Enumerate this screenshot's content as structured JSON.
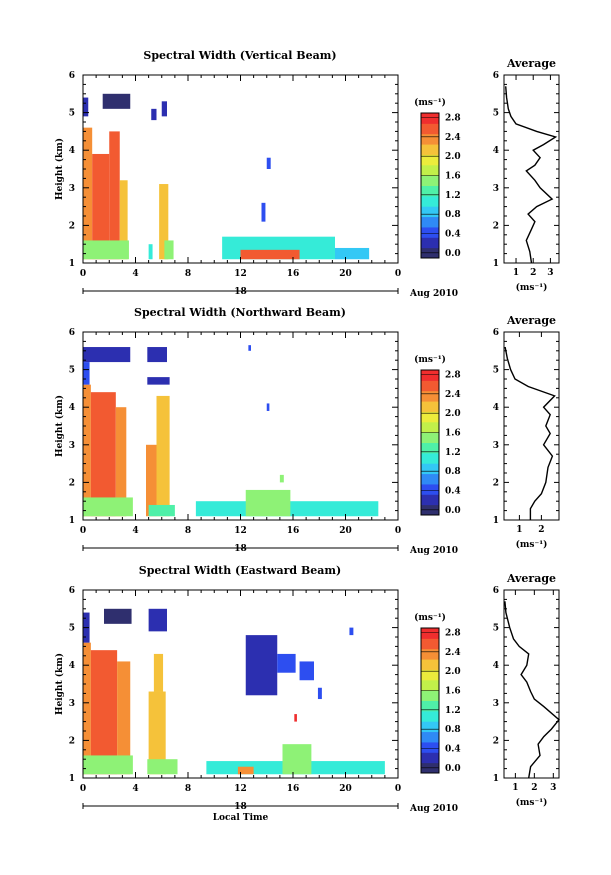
{
  "chart_data": [
    {
      "type": "heatmap",
      "title": "Spectral Width (Vertical Beam)",
      "ylabel": "Height (km)",
      "xlabel": "",
      "x_ticks": [
        "0",
        "4",
        "8",
        "12",
        "16",
        "20",
        "0"
      ],
      "y_ticks": [
        "1",
        "2",
        "3",
        "4",
        "5",
        "6"
      ],
      "date_label": "18",
      "month_label": "Aug 2010",
      "xlim": [
        0,
        24
      ],
      "ylim": [
        1,
        6
      ],
      "colorbar": {
        "unit": "(ms⁻¹)",
        "tick_labels": [
          "0.0",
          "0.4",
          "0.8",
          "1.2",
          "1.6",
          "2.0",
          "2.4",
          "2.8"
        ],
        "range": [
          0,
          3.0
        ]
      },
      "cells": [
        {
          "t0": 0.0,
          "t1": 0.7,
          "z0": 1.1,
          "z1": 4.6,
          "v": 2.4
        },
        {
          "t0": 0.7,
          "t1": 2.0,
          "z0": 1.1,
          "z1": 3.9,
          "v": 2.6
        },
        {
          "t0": 2.0,
          "t1": 2.8,
          "z0": 1.1,
          "z1": 4.5,
          "v": 2.7
        },
        {
          "t0": 2.8,
          "t1": 3.4,
          "z0": 1.1,
          "z1": 3.2,
          "v": 2.3
        },
        {
          "t0": 0.0,
          "t1": 3.5,
          "z0": 1.1,
          "z1": 1.6,
          "v": 1.7
        },
        {
          "t0": 1.5,
          "t1": 3.6,
          "z0": 5.1,
          "z1": 5.5,
          "v": 0.2
        },
        {
          "t0": 0.0,
          "t1": 0.4,
          "z0": 4.9,
          "z1": 5.4,
          "v": 0.4
        },
        {
          "t0": 5.8,
          "t1": 6.5,
          "z0": 1.1,
          "z1": 3.1,
          "v": 2.2
        },
        {
          "t0": 6.2,
          "t1": 6.9,
          "z0": 1.1,
          "z1": 1.6,
          "v": 1.5
        },
        {
          "t0": 5.0,
          "t1": 5.3,
          "z0": 1.1,
          "z1": 1.5,
          "v": 1.2
        },
        {
          "t0": 5.2,
          "t1": 5.6,
          "z0": 4.8,
          "z1": 5.1,
          "v": 0.4
        },
        {
          "t0": 6.0,
          "t1": 6.4,
          "z0": 4.9,
          "z1": 5.3,
          "v": 0.3
        },
        {
          "t0": 10.6,
          "t1": 19.2,
          "z0": 1.1,
          "z1": 1.7,
          "v": 1.2
        },
        {
          "t0": 12.0,
          "t1": 16.5,
          "z0": 1.1,
          "z1": 1.35,
          "v": 2.7
        },
        {
          "t0": 19.2,
          "t1": 21.8,
          "z0": 1.1,
          "z1": 1.4,
          "v": 1.0
        },
        {
          "t0": 14.0,
          "t1": 14.3,
          "z0": 3.5,
          "z1": 3.8,
          "v": 0.5
        },
        {
          "t0": 13.6,
          "t1": 13.9,
          "z0": 2.1,
          "z1": 2.6,
          "v": 0.5
        }
      ],
      "average_profile": {
        "title": "Average",
        "xlabel": "(ms⁻¹)",
        "x_ticks": [
          "1",
          "2",
          "3"
        ],
        "y_ticks": [
          "1",
          "2",
          "3",
          "4",
          "5",
          "6"
        ],
        "xlim": [
          0.3,
          3.5
        ],
        "ylim": [
          1,
          6
        ],
        "points": [
          [
            1.9,
            1.0
          ],
          [
            1.8,
            1.3
          ],
          [
            1.6,
            1.6
          ],
          [
            1.9,
            1.9
          ],
          [
            2.1,
            2.1
          ],
          [
            1.7,
            2.3
          ],
          [
            2.2,
            2.5
          ],
          [
            3.1,
            2.7
          ],
          [
            2.4,
            3.0
          ],
          [
            2.1,
            3.2
          ],
          [
            1.6,
            3.45
          ],
          [
            2.1,
            3.6
          ],
          [
            2.4,
            3.8
          ],
          [
            2.0,
            4.0
          ],
          [
            2.6,
            4.15
          ],
          [
            3.3,
            4.35
          ],
          [
            2.2,
            4.5
          ],
          [
            1.0,
            4.7
          ],
          [
            0.7,
            4.9
          ],
          [
            0.55,
            5.1
          ],
          [
            0.45,
            5.4
          ],
          [
            0.4,
            5.7
          ]
        ]
      }
    },
    {
      "type": "heatmap",
      "title": "Spectral Width (Northward Beam)",
      "ylabel": "Height (km)",
      "xlabel": "",
      "x_ticks": [
        "0",
        "4",
        "8",
        "12",
        "16",
        "20",
        "0"
      ],
      "y_ticks": [
        "1",
        "2",
        "3",
        "4",
        "5",
        "6"
      ],
      "date_label": "18",
      "month_label": "Aug 2010",
      "xlim": [
        0,
        24
      ],
      "ylim": [
        1,
        6
      ],
      "colorbar": {
        "unit": "(ms⁻¹)",
        "tick_labels": [
          "0.0",
          "0.4",
          "0.8",
          "1.2",
          "1.6",
          "2.0",
          "2.4",
          "2.8"
        ],
        "range": [
          0,
          3.0
        ]
      },
      "cells": [
        {
          "t0": 0.0,
          "t1": 0.6,
          "z0": 1.1,
          "z1": 4.6,
          "v": 2.4
        },
        {
          "t0": 0.6,
          "t1": 2.5,
          "z0": 1.1,
          "z1": 4.4,
          "v": 2.7
        },
        {
          "t0": 2.5,
          "t1": 3.3,
          "z0": 1.1,
          "z1": 4.0,
          "v": 2.5
        },
        {
          "t0": 0.0,
          "t1": 3.8,
          "z0": 1.1,
          "z1": 1.6,
          "v": 1.7
        },
        {
          "t0": 0.0,
          "t1": 3.6,
          "z0": 5.2,
          "z1": 5.6,
          "v": 0.3
        },
        {
          "t0": 0.0,
          "t1": 0.5,
          "z0": 4.6,
          "z1": 5.2,
          "v": 0.5
        },
        {
          "t0": 4.8,
          "t1": 5.6,
          "z0": 1.1,
          "z1": 3.0,
          "v": 2.4
        },
        {
          "t0": 5.6,
          "t1": 6.6,
          "z0": 1.1,
          "z1": 4.3,
          "v": 2.3
        },
        {
          "t0": 4.9,
          "t1": 6.4,
          "z0": 5.2,
          "z1": 5.6,
          "v": 0.3
        },
        {
          "t0": 4.9,
          "t1": 6.6,
          "z0": 4.6,
          "z1": 4.8,
          "v": 0.4
        },
        {
          "t0": 5.0,
          "t1": 7.0,
          "z0": 1.1,
          "z1": 1.4,
          "v": 1.4
        },
        {
          "t0": 8.6,
          "t1": 22.5,
          "z0": 1.1,
          "z1": 1.5,
          "v": 1.1
        },
        {
          "t0": 12.4,
          "t1": 15.8,
          "z0": 1.1,
          "z1": 1.8,
          "v": 1.6
        },
        {
          "t0": 15.0,
          "t1": 15.3,
          "z0": 2.0,
          "z1": 2.2,
          "v": 1.6
        },
        {
          "t0": 14.0,
          "t1": 14.2,
          "z0": 3.9,
          "z1": 4.1,
          "v": 0.5
        },
        {
          "t0": 12.6,
          "t1": 12.8,
          "z0": 5.5,
          "z1": 5.65,
          "v": 0.5
        }
      ],
      "average_profile": {
        "title": "Average",
        "xlabel": "(ms⁻¹)",
        "x_ticks": [
          "1",
          "2"
        ],
        "y_ticks": [
          "1",
          "2",
          "3",
          "4",
          "5",
          "6"
        ],
        "xlim": [
          0.3,
          2.8
        ],
        "ylim": [
          1,
          6
        ],
        "points": [
          [
            1.5,
            1.0
          ],
          [
            1.5,
            1.3
          ],
          [
            1.7,
            1.5
          ],
          [
            2.0,
            1.7
          ],
          [
            2.2,
            2.0
          ],
          [
            2.3,
            2.4
          ],
          [
            2.5,
            2.7
          ],
          [
            2.1,
            3.0
          ],
          [
            2.4,
            3.3
          ],
          [
            2.2,
            3.5
          ],
          [
            2.4,
            3.8
          ],
          [
            2.1,
            4.0
          ],
          [
            2.6,
            4.3
          ],
          [
            1.4,
            4.55
          ],
          [
            0.8,
            4.75
          ],
          [
            0.6,
            5.0
          ],
          [
            0.45,
            5.3
          ],
          [
            0.35,
            5.6
          ]
        ]
      }
    },
    {
      "type": "heatmap",
      "title": "Spectral Width (Eastward Beam)",
      "ylabel": "Height (km)",
      "xlabel": "Local Time",
      "x_ticks": [
        "0",
        "4",
        "8",
        "12",
        "16",
        "20",
        "0"
      ],
      "y_ticks": [
        "1",
        "2",
        "3",
        "4",
        "5",
        "6"
      ],
      "date_label": "18",
      "month_label": "Aug 2010",
      "xlim": [
        0,
        24
      ],
      "ylim": [
        1,
        6
      ],
      "colorbar": {
        "unit": "(ms⁻¹)",
        "tick_labels": [
          "0.0",
          "0.4",
          "0.8",
          "1.2",
          "1.6",
          "2.0",
          "2.4",
          "2.8"
        ],
        "range": [
          0,
          3.0
        ]
      },
      "cells": [
        {
          "t0": 0.0,
          "t1": 0.6,
          "z0": 1.1,
          "z1": 4.6,
          "v": 2.4
        },
        {
          "t0": 0.6,
          "t1": 2.6,
          "z0": 1.1,
          "z1": 4.4,
          "v": 2.7
        },
        {
          "t0": 2.6,
          "t1": 3.6,
          "z0": 1.1,
          "z1": 4.1,
          "v": 2.4
        },
        {
          "t0": 0.0,
          "t1": 3.8,
          "z0": 1.1,
          "z1": 1.6,
          "v": 1.7
        },
        {
          "t0": 1.6,
          "t1": 3.7,
          "z0": 5.1,
          "z1": 5.5,
          "v": 0.2
        },
        {
          "t0": 0.0,
          "t1": 0.5,
          "z0": 4.6,
          "z1": 5.4,
          "v": 0.4
        },
        {
          "t0": 5.0,
          "t1": 6.3,
          "z0": 1.1,
          "z1": 3.3,
          "v": 2.3
        },
        {
          "t0": 5.4,
          "t1": 6.1,
          "z0": 3.3,
          "z1": 4.3,
          "v": 2.2
        },
        {
          "t0": 5.0,
          "t1": 6.4,
          "z0": 4.9,
          "z1": 5.5,
          "v": 0.3
        },
        {
          "t0": 4.9,
          "t1": 7.2,
          "z0": 1.1,
          "z1": 1.5,
          "v": 1.6
        },
        {
          "t0": 12.4,
          "t1": 14.8,
          "z0": 3.2,
          "z1": 4.8,
          "v": 0.3
        },
        {
          "t0": 14.8,
          "t1": 16.2,
          "z0": 3.8,
          "z1": 4.3,
          "v": 0.6
        },
        {
          "t0": 16.5,
          "t1": 17.6,
          "z0": 3.6,
          "z1": 4.1,
          "v": 0.5
        },
        {
          "t0": 17.9,
          "t1": 18.2,
          "z0": 3.1,
          "z1": 3.4,
          "v": 0.5
        },
        {
          "t0": 20.3,
          "t1": 20.6,
          "z0": 4.8,
          "z1": 5.0,
          "v": 0.5
        },
        {
          "t0": 16.1,
          "t1": 16.3,
          "z0": 2.5,
          "z1": 2.7,
          "v": 2.8
        },
        {
          "t0": 9.4,
          "t1": 23.0,
          "z0": 1.1,
          "z1": 1.45,
          "v": 1.1
        },
        {
          "t0": 15.2,
          "t1": 17.4,
          "z0": 1.1,
          "z1": 1.9,
          "v": 1.5
        },
        {
          "t0": 11.8,
          "t1": 13.0,
          "z0": 1.1,
          "z1": 1.3,
          "v": 2.5
        }
      ],
      "average_profile": {
        "title": "Average",
        "xlabel": "(ms⁻¹)",
        "x_ticks": [
          "1",
          "2",
          "3"
        ],
        "y_ticks": [
          "1",
          "2",
          "3",
          "4",
          "5",
          "6"
        ],
        "xlim": [
          0.4,
          3.3
        ],
        "ylim": [
          1,
          6
        ],
        "points": [
          [
            1.7,
            1.0
          ],
          [
            1.8,
            1.3
          ],
          [
            2.3,
            1.6
          ],
          [
            2.2,
            1.9
          ],
          [
            2.5,
            2.1
          ],
          [
            2.9,
            2.3
          ],
          [
            3.3,
            2.55
          ],
          [
            2.5,
            2.9
          ],
          [
            2.0,
            3.1
          ],
          [
            1.8,
            3.3
          ],
          [
            1.6,
            3.55
          ],
          [
            1.3,
            3.75
          ],
          [
            1.6,
            4.0
          ],
          [
            1.7,
            4.3
          ],
          [
            1.2,
            4.5
          ],
          [
            0.9,
            4.7
          ],
          [
            0.7,
            5.0
          ],
          [
            0.5,
            5.4
          ],
          [
            0.45,
            5.7
          ]
        ]
      }
    }
  ]
}
